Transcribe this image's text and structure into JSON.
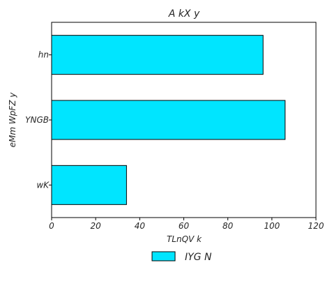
{
  "chart_data": {
    "type": "bar",
    "orientation": "horizontal",
    "title": "A kX y",
    "xlabel": "TLnQV k",
    "ylabel": "eMm  WpFZ y",
    "categories": [
      "hn",
      "YNGB",
      "wK"
    ],
    "series": [
      {
        "name": "IYG N",
        "values": [
          96,
          106,
          34
        ],
        "color": "#00e5ff"
      }
    ],
    "xlim": [
      0,
      120
    ],
    "xticks": [
      0,
      20,
      40,
      60,
      80,
      100,
      120
    ],
    "grid": false,
    "legend_position": "bottom-center"
  }
}
